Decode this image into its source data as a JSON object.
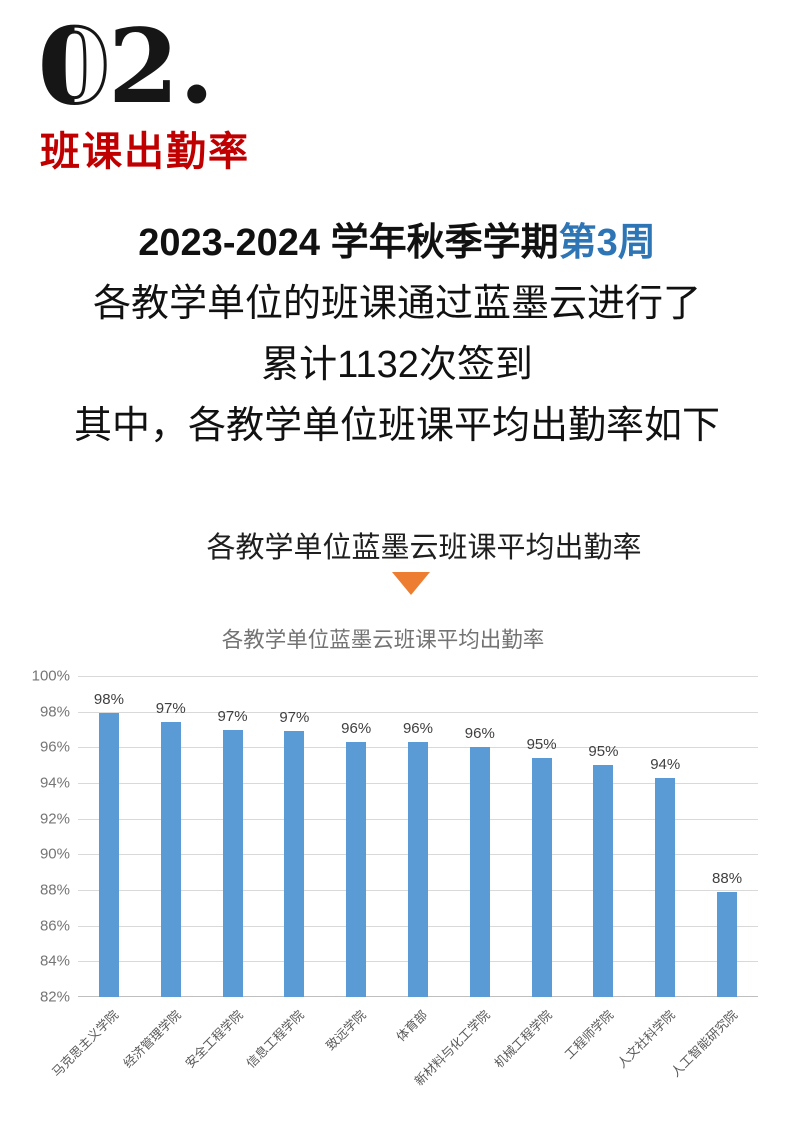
{
  "page": {
    "num_zero": "0",
    "num_rest": "2.",
    "section_number": "02.",
    "section_title": "班课出勤率",
    "intro": {
      "line1_black": "2023-2024 学年秋季学期",
      "line1_blue": "第3周",
      "line2": "各教学单位的班课通过蓝墨云进行了",
      "line3": "累计1132次签到",
      "line4": "其中，各教学单位班课平均出勤率如下"
    },
    "chart_heading": "各教学单位蓝墨云班课平均出勤率"
  },
  "colors": {
    "red": "#C00000",
    "blue": "#2E75B6",
    "orange": "#ED7D31",
    "bar": "#5B9BD5"
  },
  "chart_data": {
    "type": "bar",
    "title": "各教学单位蓝墨云班课平均出勤率",
    "categories": [
      "马克思主义学院",
      "经济管理学院",
      "安全工程学院",
      "信息工程学院",
      "致远学院",
      "体育部",
      "新材料与化工学院",
      "机械工程学院",
      "工程师学院",
      "人文社科学院",
      "人工智能研究院"
    ],
    "values": [
      97.9,
      97.4,
      97.0,
      96.9,
      96.3,
      96.3,
      96.0,
      95.4,
      95.0,
      94.3,
      87.9
    ],
    "labels": [
      "98%",
      "97%",
      "97%",
      "97%",
      "96%",
      "96%",
      "96%",
      "95%",
      "95%",
      "94%",
      "88%"
    ],
    "xlabel": "",
    "ylabel": "",
    "ylim": [
      82,
      100
    ],
    "ytick_step": 2,
    "ytick_labels": [
      "100%",
      "98%",
      "96%",
      "94%",
      "92%",
      "90%",
      "88%",
      "86%",
      "84%",
      "82%"
    ],
    "grid": true,
    "legend": false,
    "bar_color": "#5B9BD5"
  }
}
